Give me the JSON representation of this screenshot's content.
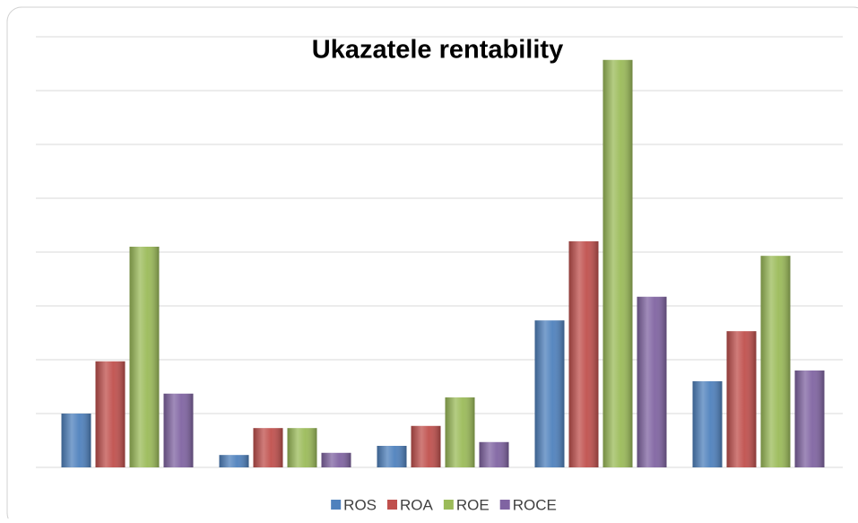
{
  "chart_data": {
    "type": "bar",
    "title": "Ukazatele rentability",
    "categories": [
      null,
      null,
      null,
      null,
      null
    ],
    "series": [
      {
        "name": "ROS",
        "color": "#4f81bd",
        "values": [
          1.0,
          0.23,
          0.4,
          2.73,
          1.6
        ]
      },
      {
        "name": "ROA",
        "color": "#c0504d",
        "values": [
          1.97,
          0.73,
          0.77,
          4.2,
          2.53
        ]
      },
      {
        "name": "ROE",
        "color": "#9bbb59",
        "values": [
          4.1,
          0.73,
          1.3,
          7.57,
          3.93
        ]
      },
      {
        "name": "ROCE",
        "color": "#8064a2",
        "values": [
          1.37,
          0.27,
          0.47,
          3.17,
          1.8
        ]
      }
    ],
    "ylim": [
      0,
      8
    ],
    "yticks": [
      0,
      1,
      2,
      3,
      4,
      5,
      6,
      7,
      8
    ],
    "grid": true,
    "legend": "bottom"
  }
}
